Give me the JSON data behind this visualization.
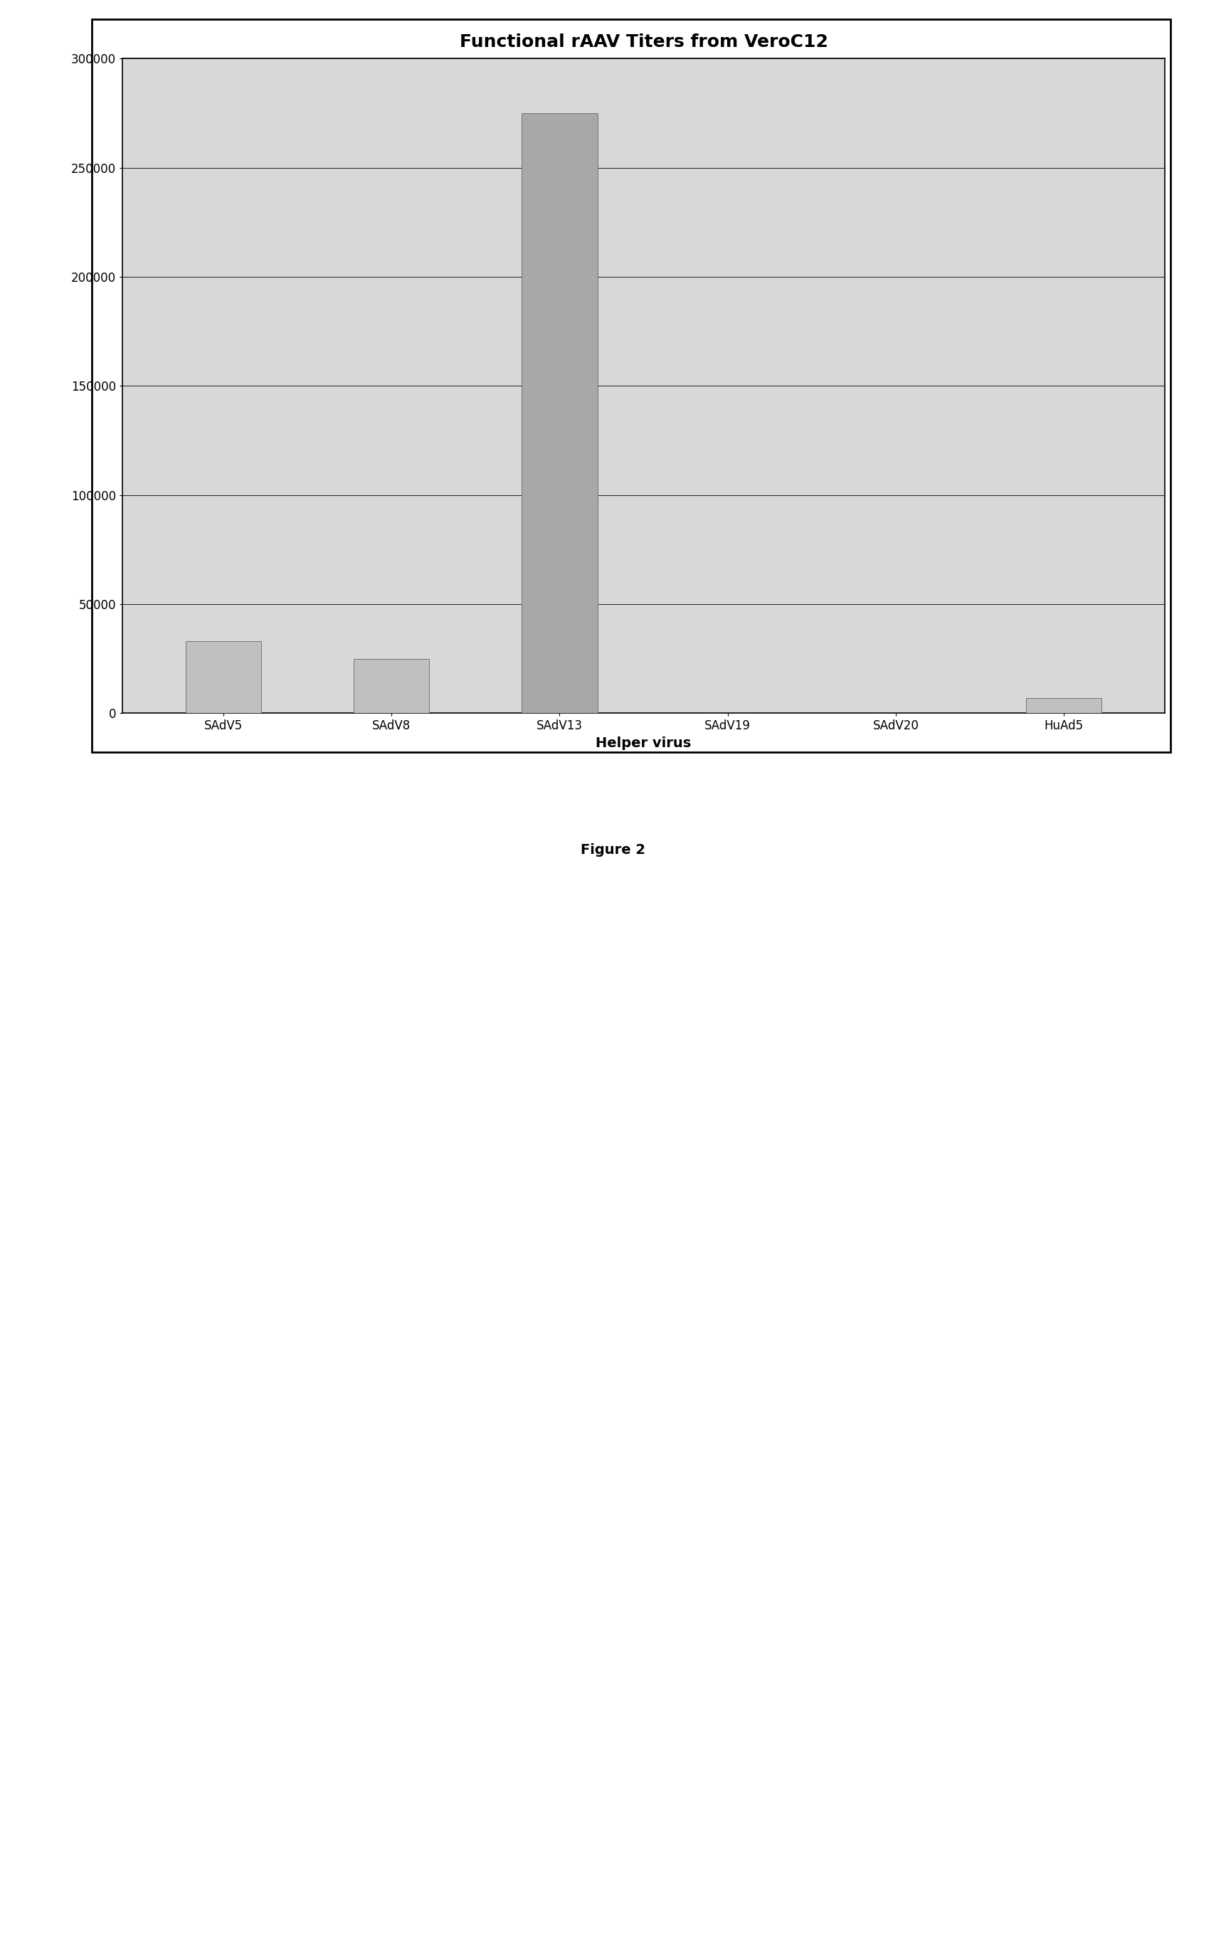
{
  "title": "Functional rAAV Titers from VeroC12",
  "categories": [
    "SAdV5",
    "SAdV8",
    "SAdV13",
    "SAdV19",
    "SAdV20",
    "HuAd5"
  ],
  "values": [
    33000,
    25000,
    275000,
    0,
    0,
    7000
  ],
  "bar_color": "#c0c0c0",
  "bar_color_sadv13": "#a8a8a8",
  "ylabel": "",
  "xlabel": "Helper virus",
  "ylim": [
    0,
    300000
  ],
  "yticks": [
    0,
    50000,
    100000,
    150000,
    200000,
    250000,
    300000
  ],
  "title_fontsize": 18,
  "xlabel_fontsize": 14,
  "tick_fontsize": 12,
  "plot_background": "#d8d8d8",
  "figure_caption": "Figure 2",
  "figure_bg": "#ffffff"
}
